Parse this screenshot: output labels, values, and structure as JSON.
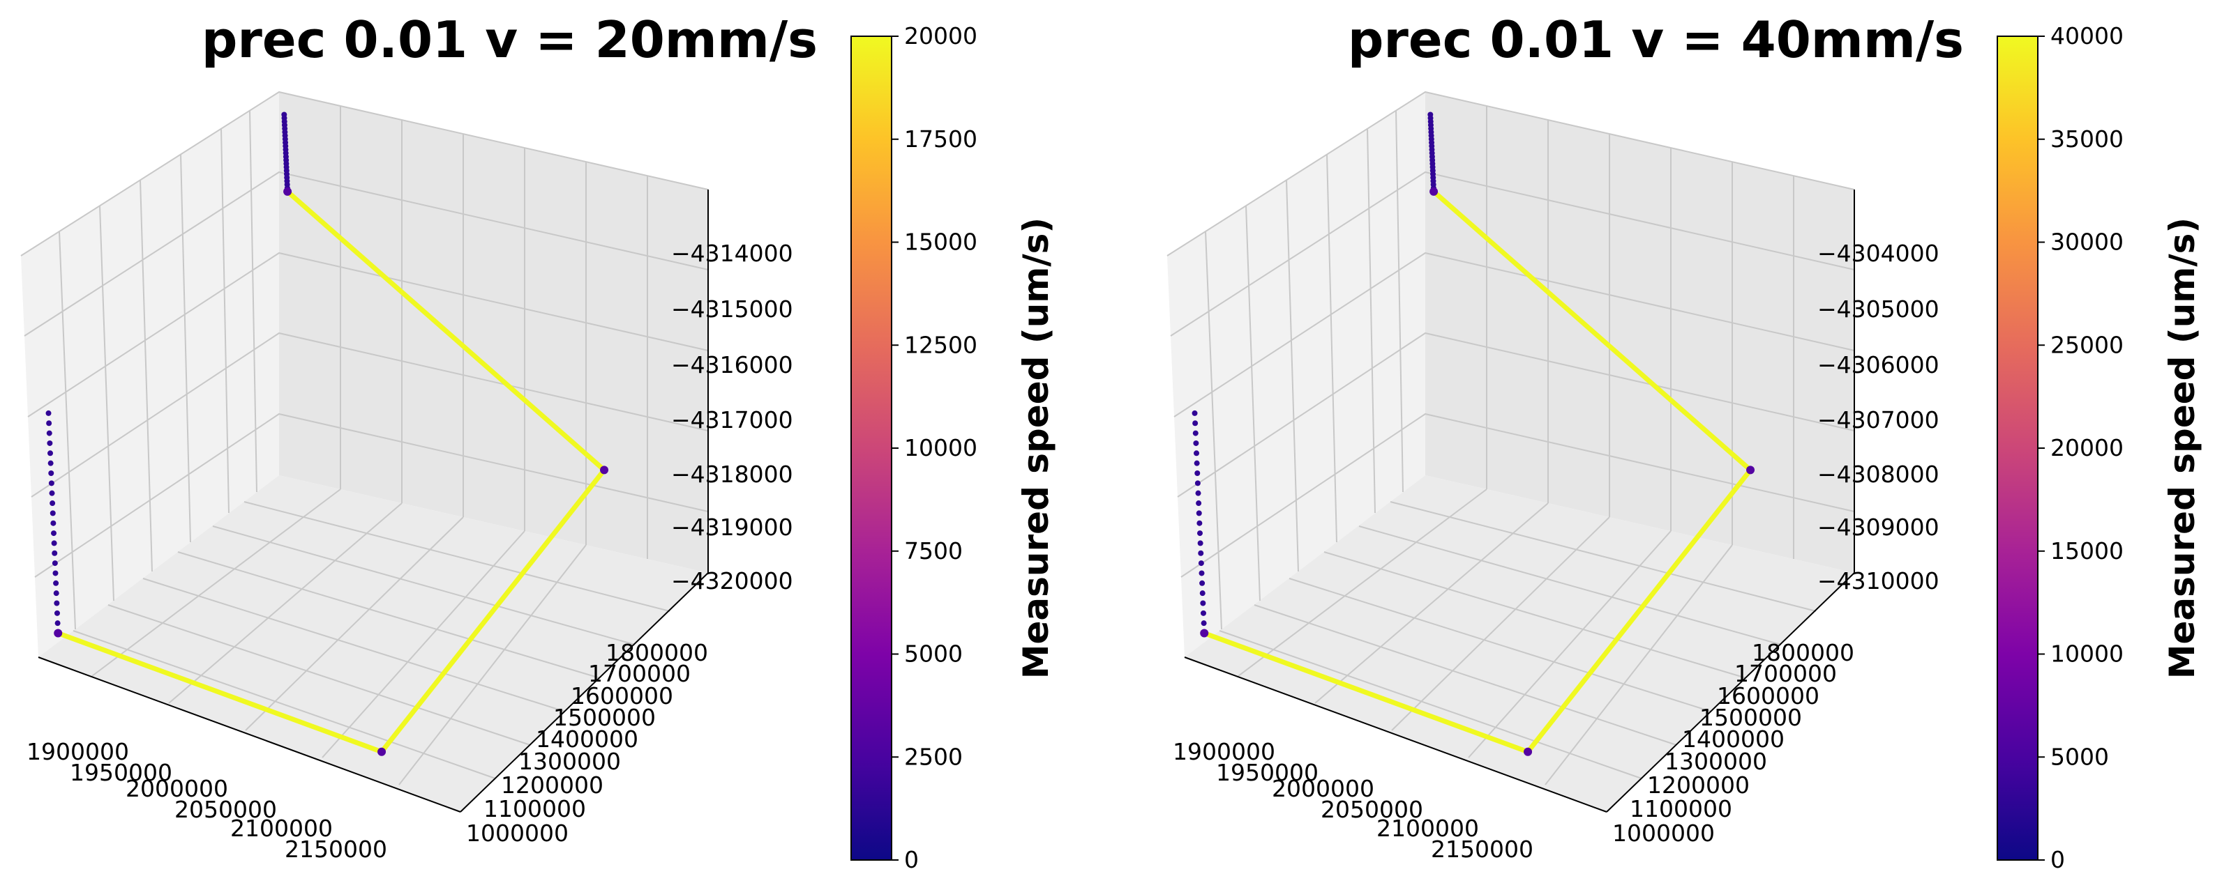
{
  "chart_data": [
    {
      "type": "scatter",
      "projection": "3d",
      "title": "prec 0.01 v = 20mm/s",
      "x_ticks": [
        "1900000",
        "1950000",
        "2000000",
        "2050000",
        "2100000",
        "2150000"
      ],
      "y_ticks": [
        "1000000",
        "1100000",
        "1200000",
        "1300000",
        "1400000",
        "1500000",
        "1600000",
        "1700000",
        "1800000"
      ],
      "z_ticks": [
        "−4320000",
        "−4319000",
        "−4318000",
        "−4317000",
        "−4316000",
        "−4315000",
        "−4314000"
      ],
      "xlim": [
        1875000,
        2175000
      ],
      "ylim": [
        950000,
        1850000
      ],
      "zlim": [
        -4320300,
        -4313000
      ],
      "path": {
        "vertices": [
          [
            1890000,
            1850000,
            -4313600
          ],
          [
            1890000,
            1850000,
            -4315000
          ],
          [
            2110000,
            1850000,
            -4318000
          ],
          [
            2110000,
            1000000,
            -4320000
          ],
          [
            1880000,
            1000000,
            -4320000
          ],
          [
            1880000,
            1000000,
            -4316000
          ]
        ],
        "segments": [
          {
            "from": 0,
            "to": 1,
            "style": "dotted",
            "speed_um_s": 1500
          },
          {
            "from": 1,
            "to": 2,
            "style": "solid",
            "speed_um_s": 20000
          },
          {
            "from": 2,
            "to": 3,
            "style": "solid",
            "speed_um_s": 20000
          },
          {
            "from": 3,
            "to": 4,
            "style": "solid",
            "speed_um_s": 20000
          },
          {
            "from": 4,
            "to": 5,
            "style": "dotted",
            "speed_um_s": 1500
          }
        ],
        "corner_speed_um_s": 3000
      },
      "colorbar": {
        "label": "Measured speed (um/s)",
        "min": 0,
        "max": 20000,
        "ticks": [
          "0",
          "2500",
          "5000",
          "7500",
          "10000",
          "12500",
          "15000",
          "17500",
          "20000"
        ],
        "colormap": "plasma"
      },
      "grid": true
    },
    {
      "type": "scatter",
      "projection": "3d",
      "title": "prec 0.01 v = 40mm/s",
      "x_ticks": [
        "1900000",
        "1950000",
        "2000000",
        "2050000",
        "2100000",
        "2150000"
      ],
      "y_ticks": [
        "1000000",
        "1100000",
        "1200000",
        "1300000",
        "1400000",
        "1500000",
        "1600000",
        "1700000",
        "1800000"
      ],
      "z_ticks": [
        "−4310000",
        "−4309000",
        "−4308000",
        "−4307000",
        "−4306000",
        "−4305000",
        "−4304000"
      ],
      "xlim": [
        1875000,
        2175000
      ],
      "ylim": [
        950000,
        1850000
      ],
      "zlim": [
        -4310300,
        -4303000
      ],
      "path": {
        "vertices": [
          [
            1890000,
            1850000,
            -4303600
          ],
          [
            1890000,
            1850000,
            -4305000
          ],
          [
            2110000,
            1850000,
            -4308000
          ],
          [
            2110000,
            1000000,
            -4310000
          ],
          [
            1880000,
            1000000,
            -4310000
          ],
          [
            1880000,
            1000000,
            -4306000
          ]
        ],
        "segments": [
          {
            "from": 0,
            "to": 1,
            "style": "dotted",
            "speed_um_s": 3000
          },
          {
            "from": 1,
            "to": 2,
            "style": "solid",
            "speed_um_s": 40000
          },
          {
            "from": 2,
            "to": 3,
            "style": "solid",
            "speed_um_s": 40000
          },
          {
            "from": 3,
            "to": 4,
            "style": "solid",
            "speed_um_s": 40000
          },
          {
            "from": 4,
            "to": 5,
            "style": "dotted",
            "speed_um_s": 3000
          }
        ],
        "corner_speed_um_s": 6000
      },
      "colorbar": {
        "label": "Measured speed (um/s)",
        "min": 0,
        "max": 40000,
        "ticks": [
          "0",
          "5000",
          "10000",
          "15000",
          "20000",
          "25000",
          "30000",
          "35000",
          "40000"
        ],
        "colormap": "plasma"
      },
      "grid": true
    }
  ]
}
